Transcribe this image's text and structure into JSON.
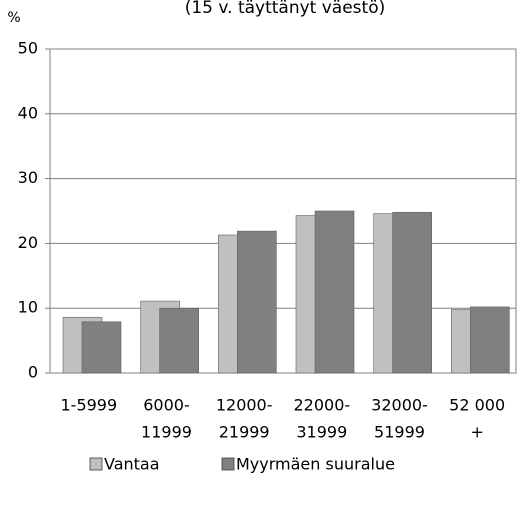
{
  "chart_data": {
    "type": "bar",
    "title": "(15 v. täyttänyt väestö)",
    "y_label": "%",
    "categories": [
      [
        "1-5999"
      ],
      [
        "6000-",
        "11999"
      ],
      [
        "12000-",
        "21999"
      ],
      [
        "22000-",
        "31999"
      ],
      [
        "32000-",
        "51999"
      ],
      [
        "52 000",
        "+"
      ]
    ],
    "series": [
      {
        "name": "Vantaa",
        "color": "#c0c0c0",
        "values": [
          8.6,
          11.1,
          21.3,
          24.3,
          24.6,
          9.8
        ]
      },
      {
        "name": "Myyrmäen suuralue",
        "color": "#808080",
        "values": [
          7.9,
          10.0,
          21.9,
          25.0,
          24.8,
          10.2
        ]
      }
    ],
    "ylim": [
      0,
      50
    ],
    "yticks": [
      0,
      10,
      20,
      30,
      40,
      50
    ],
    "grid": true,
    "legend": "bottom"
  }
}
